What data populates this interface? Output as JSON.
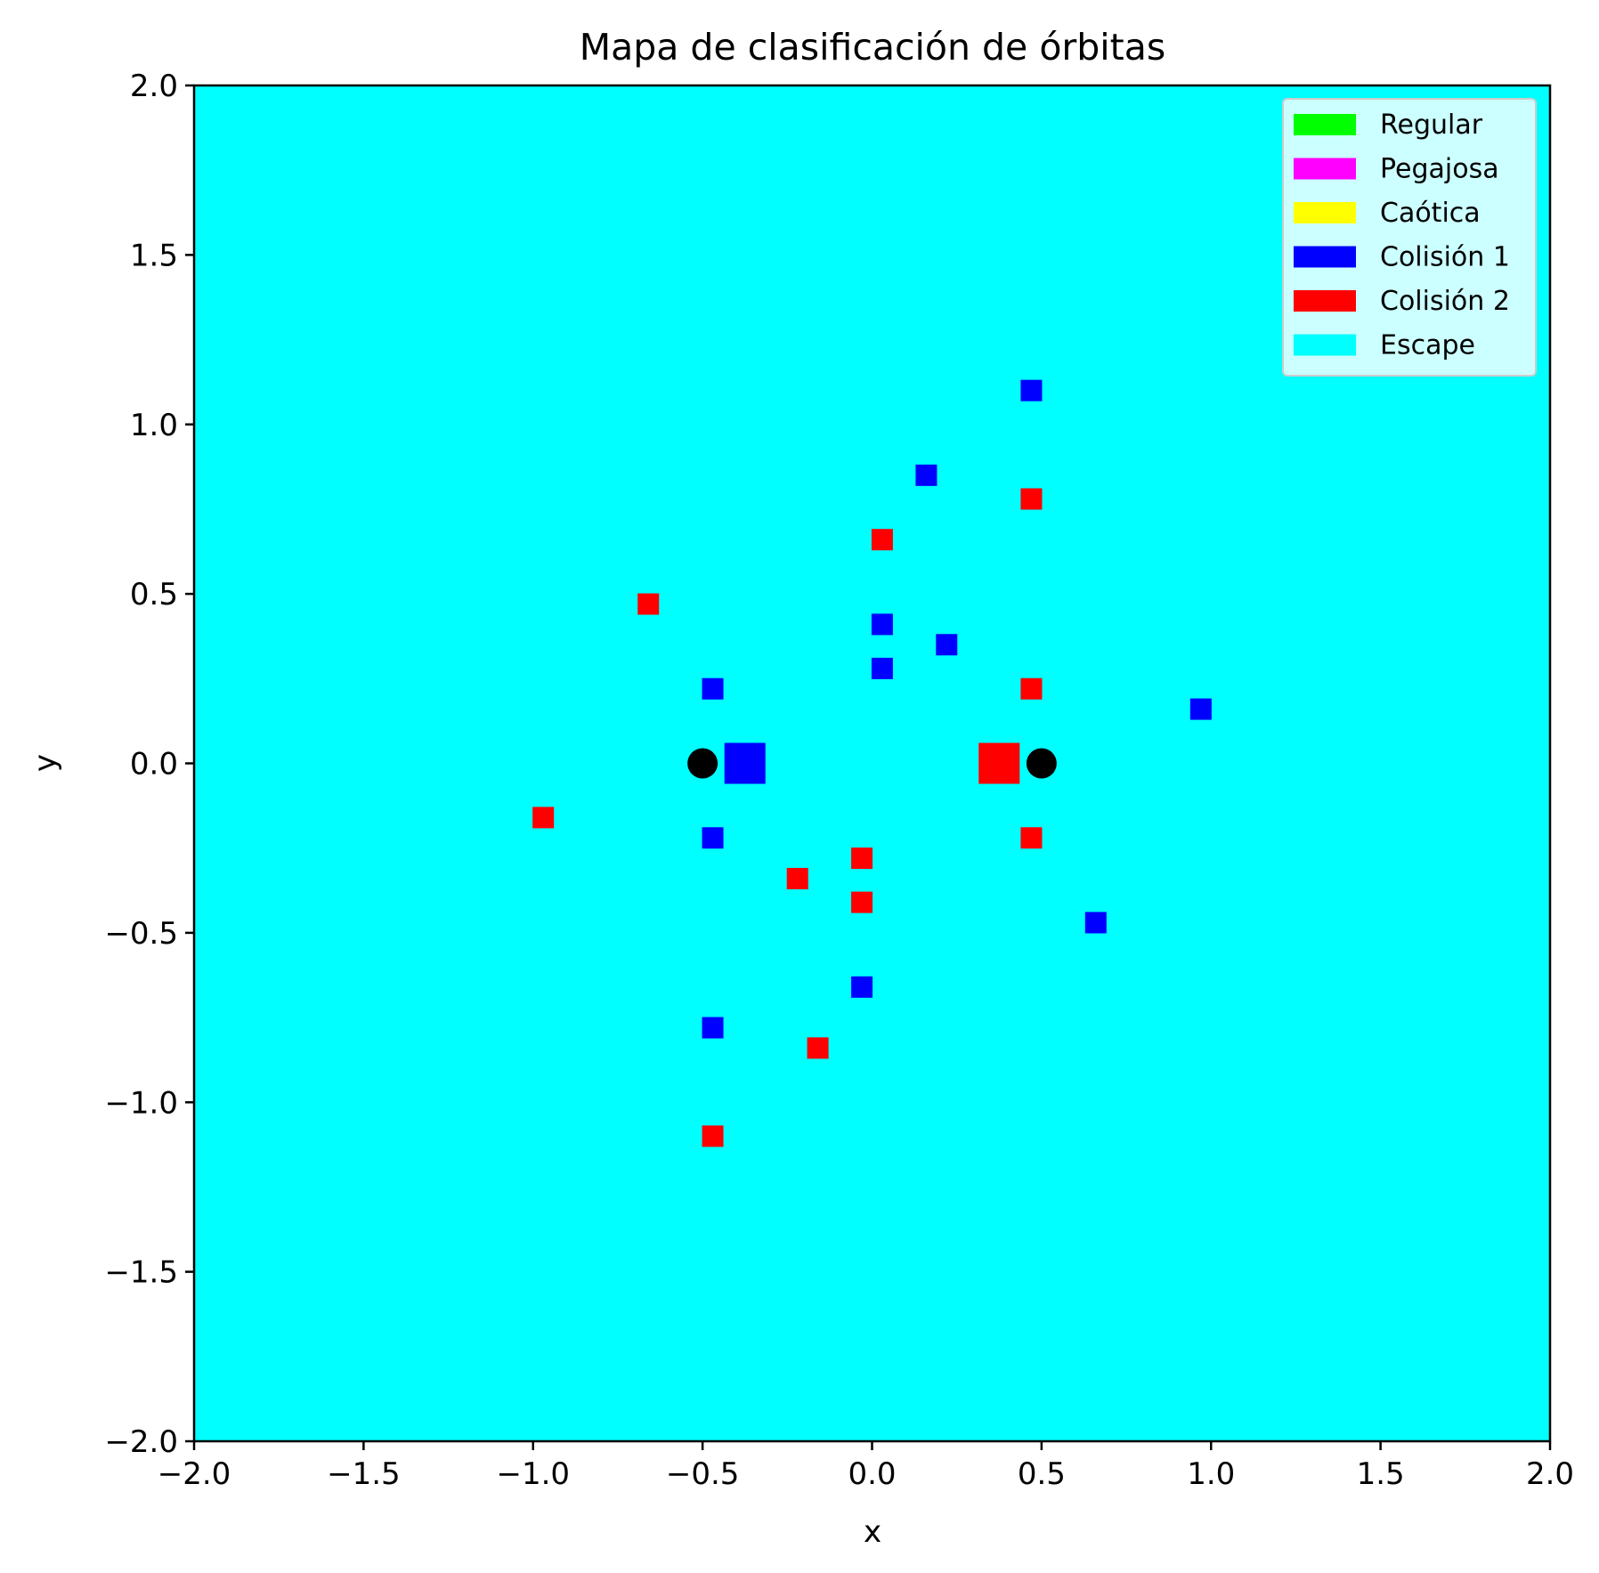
{
  "chart_data": {
    "type": "heatmap",
    "title": "Mapa de clasificación de órbitas",
    "xlabel": "x",
    "ylabel": "y",
    "xlim": [
      -2.0,
      2.0
    ],
    "ylim": [
      -2.0,
      2.0
    ],
    "x_ticks": [
      "−2.0",
      "−1.5",
      "−1.0",
      "−0.5",
      "0.0",
      "0.5",
      "1.0",
      "1.5",
      "2.0"
    ],
    "y_ticks": [
      "2.0",
      "1.5",
      "1.0",
      "0.5",
      "0.0",
      "−0.5",
      "−1.0",
      "−1.5",
      "−2.0"
    ],
    "x_tick_values": [
      -2.0,
      -1.5,
      -1.0,
      -0.5,
      0.0,
      0.5,
      1.0,
      1.5,
      2.0
    ],
    "y_tick_values": [
      2.0,
      1.5,
      1.0,
      0.5,
      0.0,
      -0.5,
      -1.0,
      -1.5,
      -2.0
    ],
    "grid": false,
    "background_class": "Escape",
    "legend_position": "top-right",
    "legend": [
      {
        "label": "Regular",
        "color": "#00ff00"
      },
      {
        "label": "Pegajosa",
        "color": "#ff00ff"
      },
      {
        "label": "Caótica",
        "color": "#ffff00"
      },
      {
        "label": "Colisión 1",
        "color": "#0000ff"
      },
      {
        "label": "Colisión 2",
        "color": "#ff0000"
      },
      {
        "label": "Escape",
        "color": "#00ffff"
      }
    ],
    "cells": [
      {
        "x": 0.47,
        "y": 1.1,
        "class": "Colisión 1"
      },
      {
        "x": 0.16,
        "y": 0.85,
        "class": "Colisión 1"
      },
      {
        "x": 0.47,
        "y": 0.78,
        "class": "Colisión 2"
      },
      {
        "x": 0.03,
        "y": 0.66,
        "class": "Colisión 2"
      },
      {
        "x": -0.66,
        "y": 0.47,
        "class": "Colisión 2"
      },
      {
        "x": 0.03,
        "y": 0.41,
        "class": "Colisión 1"
      },
      {
        "x": 0.22,
        "y": 0.35,
        "class": "Colisión 1"
      },
      {
        "x": 0.03,
        "y": 0.28,
        "class": "Colisión 1"
      },
      {
        "x": -0.47,
        "y": 0.22,
        "class": "Colisión 1"
      },
      {
        "x": 0.47,
        "y": 0.22,
        "class": "Colisión 2"
      },
      {
        "x": 0.97,
        "y": 0.16,
        "class": "Colisión 1"
      },
      {
        "x": -0.97,
        "y": -0.16,
        "class": "Colisión 2"
      },
      {
        "x": -0.47,
        "y": -0.22,
        "class": "Colisión 1"
      },
      {
        "x": 0.47,
        "y": -0.22,
        "class": "Colisión 2"
      },
      {
        "x": -0.03,
        "y": -0.28,
        "class": "Colisión 2"
      },
      {
        "x": -0.22,
        "y": -0.34,
        "class": "Colisión 2"
      },
      {
        "x": -0.03,
        "y": -0.41,
        "class": "Colisión 2"
      },
      {
        "x": 0.66,
        "y": -0.47,
        "class": "Colisión 1"
      },
      {
        "x": -0.03,
        "y": -0.66,
        "class": "Colisión 1"
      },
      {
        "x": -0.47,
        "y": -0.78,
        "class": "Colisión 1"
      },
      {
        "x": -0.16,
        "y": -0.84,
        "class": "Colisión 2"
      },
      {
        "x": -0.47,
        "y": -1.1,
        "class": "Colisión 2"
      }
    ],
    "large_cells": [
      {
        "x": -0.375,
        "y": 0.0,
        "class": "Colisión 1"
      },
      {
        "x": 0.375,
        "y": 0.0,
        "class": "Colisión 2"
      }
    ],
    "primaries": [
      {
        "x": -0.5,
        "y": 0.0,
        "color": "#000000"
      },
      {
        "x": 0.5,
        "y": 0.0,
        "color": "#000000"
      }
    ]
  }
}
